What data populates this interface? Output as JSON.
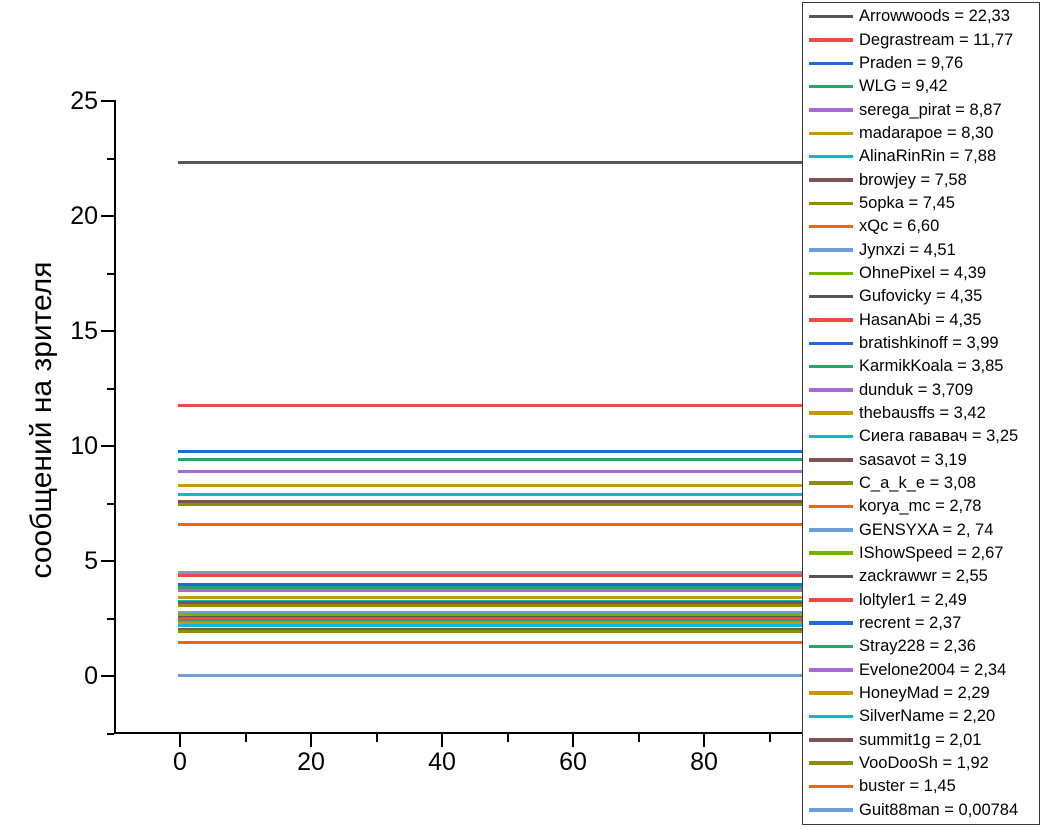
{
  "chart_data": {
    "type": "line",
    "title": "",
    "xlabel": "",
    "ylabel": "сообщений на зрителя",
    "grid": false,
    "legend_position": "right-overlay",
    "x_axis": {
      "major_ticks": [
        0,
        20,
        40,
        60,
        80
      ],
      "minor_ticks": [
        10,
        30,
        50,
        70,
        90
      ],
      "range": [
        -10,
        95
      ]
    },
    "y_axis": {
      "major_ticks": [
        0,
        5,
        10,
        15,
        20,
        25
      ],
      "minor_ticks": [
        -2.5,
        2.5,
        7.5,
        12.5,
        17.5,
        22.5
      ],
      "range": [
        -2.5,
        25
      ]
    },
    "series_note": "each series is a horizontal line y = value spanning from x = 0 to the right edge of the plot",
    "series": [
      {
        "name": "Arrowwoods",
        "value": 22.33,
        "label": "Arrowwoods = 22,33",
        "color": "#575757"
      },
      {
        "name": "Degrastream",
        "value": 11.77,
        "label": "Degrastream = 11,77",
        "color": "#EC4B43"
      },
      {
        "name": "Praden",
        "value": 9.76,
        "label": "Praden = 9,76",
        "color": "#1E6BD6"
      },
      {
        "name": "WLG",
        "value": 9.42,
        "label": "WLG = 9,42",
        "color": "#2FA26B"
      },
      {
        "name": "serega_pirat",
        "value": 8.87,
        "label": "serega_pirat = 8,87",
        "color": "#A76BD7"
      },
      {
        "name": "madarapoe",
        "value": 8.3,
        "label": "madarapoe = 8,30",
        "color": "#C9970A"
      },
      {
        "name": "AlinaRinRin",
        "value": 7.88,
        "label": "AlinaRinRin = 7,88",
        "color": "#00BEC8"
      },
      {
        "name": "browjey",
        "value": 7.58,
        "label": "browjey = 7,58",
        "color": "#7E5152"
      },
      {
        "name": "5opka",
        "value": 7.45,
        "label": "5opka = 7,45",
        "color": "#8E8E02"
      },
      {
        "name": "xQc",
        "value": 6.6,
        "label": "xQc = 6,60",
        "color": "#F66302"
      },
      {
        "name": "Jynxzi",
        "value": 4.51,
        "label": "Jynxzi = 4,51",
        "color": "#6F9ED6"
      },
      {
        "name": "OhnePixel",
        "value": 4.39,
        "label": "OhnePixel = 4,39",
        "color": "#74B204"
      },
      {
        "name": "Gufovicky",
        "value": 4.35,
        "label": "Gufovicky = 4,35",
        "color": "#575757"
      },
      {
        "name": "HasanAbi",
        "value": 4.35,
        "label": "HasanAbi = 4,35",
        "color": "#EC4B43"
      },
      {
        "name": "bratishkinoff",
        "value": 3.99,
        "label": "bratishkinoff = 3,99",
        "color": "#1E6BD6"
      },
      {
        "name": "KarmikKoala",
        "value": 3.85,
        "label": "KarmikKoala = 3,85",
        "color": "#2FA26B"
      },
      {
        "name": "dunduk",
        "value": 3.709,
        "label": "dunduk = 3,709",
        "color": "#A76BD7"
      },
      {
        "name": "thebausffs",
        "value": 3.42,
        "label": "thebausffs = 3,42",
        "color": "#C9970A"
      },
      {
        "name": "Сиега гававач",
        "value": 3.25,
        "label": "Сиега гававач = 3,25",
        "color": "#00BEC8"
      },
      {
        "name": "sasavot",
        "value": 3.19,
        "label": "sasavot = 3,19",
        "color": "#7E5152"
      },
      {
        "name": "C_a_k_e",
        "value": 3.08,
        "label": "C_a_k_e = 3,08",
        "color": "#8E8E02"
      },
      {
        "name": "korya_mc",
        "value": 2.78,
        "label": "korya_mc = 2,78",
        "color": "#F66302"
      },
      {
        "name": "GENSYXA",
        "value": 2.74,
        "label": "GENSYXA = 2, 74",
        "color": "#6F9ED6"
      },
      {
        "name": "IShowSpeed",
        "value": 2.67,
        "label": "IShowSpeed = 2,67",
        "color": "#74B204"
      },
      {
        "name": "zackrawwr",
        "value": 2.55,
        "label": "zackrawwr = 2,55",
        "color": "#575757"
      },
      {
        "name": "loltyler1",
        "value": 2.49,
        "label": "loltyler1 = 2,49",
        "color": "#EC4B43"
      },
      {
        "name": "recrent",
        "value": 2.37,
        "label": "recrent = 2,37",
        "color": "#1E6BD6"
      },
      {
        "name": "Stray228",
        "value": 2.36,
        "label": "Stray228 = 2,36",
        "color": "#2FA26B"
      },
      {
        "name": "Evelone2004",
        "value": 2.34,
        "label": "Evelone2004 = 2,34",
        "color": "#A76BD7"
      },
      {
        "name": "HoneyMad",
        "value": 2.29,
        "label": "HoneyMad = 2,29",
        "color": "#C9970A"
      },
      {
        "name": "SilverName",
        "value": 2.2,
        "label": "SilverName = 2,20",
        "color": "#00BEC8"
      },
      {
        "name": "summit1g",
        "value": 2.01,
        "label": "summit1g = 2,01",
        "color": "#7E5152"
      },
      {
        "name": "VooDooSh",
        "value": 1.92,
        "label": "VooDooSh = 1,92",
        "color": "#8E8E02"
      },
      {
        "name": "buster",
        "value": 1.45,
        "label": "buster = 1,45",
        "color": "#F66302"
      },
      {
        "name": "Guit88man",
        "value": 0.00784,
        "label": "Guit88man = 0,00784",
        "color": "#6F9ED6"
      }
    ]
  }
}
